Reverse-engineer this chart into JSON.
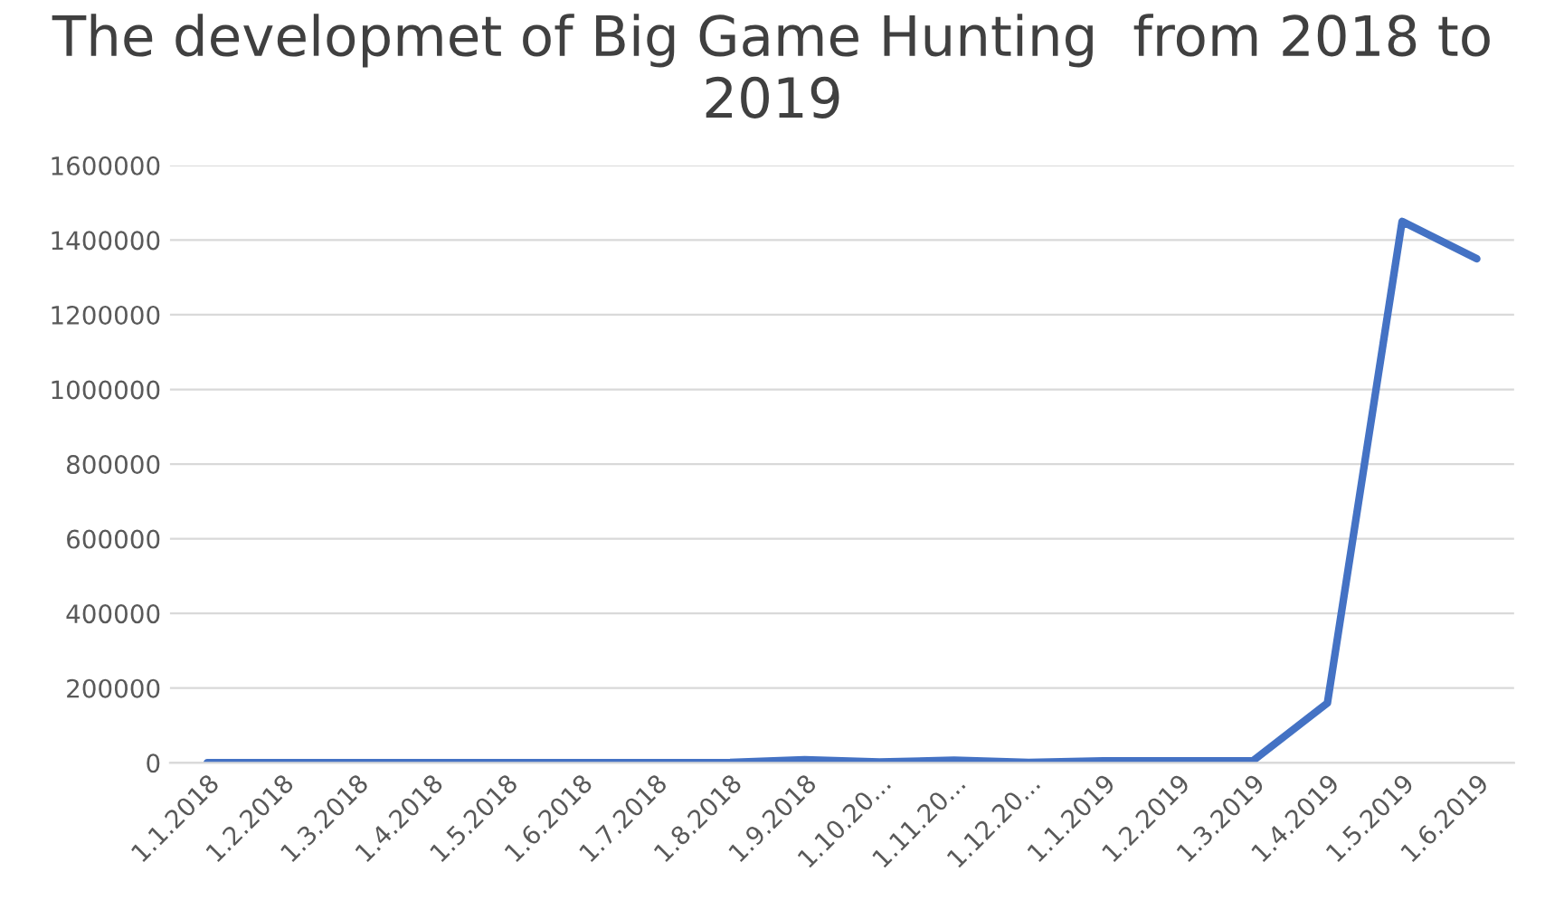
{
  "chart_data": {
    "type": "line",
    "title": "The developmet of Big Game Hunting  from 2018 to 2019",
    "categories": [
      "1.1.2018",
      "1.2.2018",
      "1.3.2018",
      "1.4.2018",
      "1.5.2018",
      "1.6.2018",
      "1.7.2018",
      "1.8.2018",
      "1.9.2018",
      "1.10.20...",
      "1.11.20...",
      "1.12.20...",
      "1.1.2019",
      "1.2.2019",
      "1.3.2019",
      "1.4.2019",
      "1.5.2019",
      "1.6.2019"
    ],
    "series": [
      {
        "color": "#4472c4",
        "values": [
          0,
          0,
          0,
          0,
          0,
          0,
          0,
          1000,
          8000,
          2000,
          7000,
          1000,
          5000,
          5000,
          5000,
          160000,
          1450000,
          1350000
        ]
      }
    ],
    "ylim": [
      0,
      1600000
    ],
    "yticks": [
      0,
      200000,
      400000,
      600000,
      800000,
      1000000,
      1200000,
      1400000,
      1600000
    ],
    "grid": "y",
    "marker": "none",
    "line_style": "solid"
  }
}
